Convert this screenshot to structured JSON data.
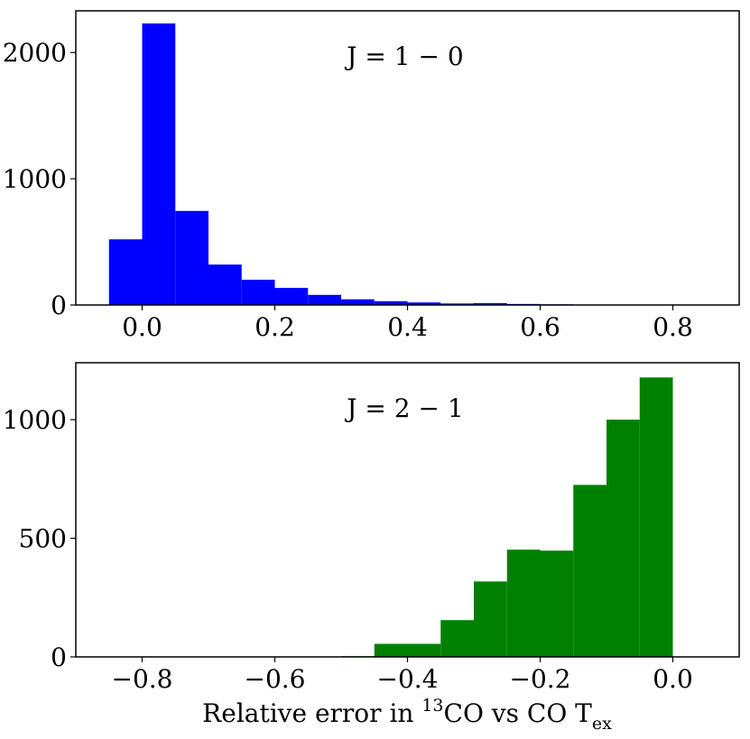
{
  "chart_data": [
    {
      "type": "bar",
      "title": "",
      "annotation": "J = 1 − 0",
      "xlabel": "",
      "ylabel": "",
      "color": "#0000ff",
      "xlim": [
        -0.1,
        0.9
      ],
      "ylim": [
        0,
        2330
      ],
      "xticks": [
        0.0,
        0.2,
        0.4,
        0.6,
        0.8
      ],
      "xtick_labels": [
        "0.0",
        "0.2",
        "0.4",
        "0.6",
        "0.8"
      ],
      "yticks": [
        0,
        1000,
        2000
      ],
      "ytick_labels": [
        "0",
        "1000",
        "2000"
      ],
      "bin_edges": [
        -0.05,
        0.0,
        0.05,
        0.1,
        0.15,
        0.2,
        0.25,
        0.3,
        0.35,
        0.4,
        0.45,
        0.5,
        0.55,
        0.6,
        0.65,
        0.7,
        0.75,
        0.8,
        0.85
      ],
      "values": [
        520,
        2230,
        745,
        320,
        200,
        135,
        80,
        45,
        30,
        20,
        12,
        15,
        8,
        5,
        3,
        2,
        1,
        1
      ]
    },
    {
      "type": "bar",
      "title": "",
      "annotation": "J = 2 − 1",
      "xlabel": "Relative error in ¹³CO vs CO T_ex",
      "ylabel": "",
      "color": "#008000",
      "xlim": [
        -0.9,
        0.1
      ],
      "ylim": [
        0,
        1240
      ],
      "xticks": [
        -0.8,
        -0.6,
        -0.4,
        -0.2,
        0.0
      ],
      "xtick_labels": [
        "−0.8",
        "−0.6",
        "−0.4",
        "−0.2",
        "0.0"
      ],
      "yticks": [
        0,
        500,
        1000
      ],
      "ytick_labels": [
        "0",
        "500",
        "1000"
      ],
      "bin_edges": [
        -0.85,
        -0.8,
        -0.75,
        -0.7,
        -0.65,
        -0.6,
        -0.55,
        -0.5,
        -0.45,
        -0.4,
        -0.35,
        -0.3,
        -0.25,
        -0.2,
        -0.15,
        -0.1,
        -0.05,
        0.0
      ],
      "values": [
        0,
        0,
        0,
        0,
        0,
        0,
        0,
        3,
        55,
        55,
        155,
        318,
        452,
        448,
        725,
        1000,
        1178
      ]
    }
  ],
  "xlabel_parts": {
    "prefix": "Relative error in ",
    "sup": "13",
    "mid": "CO vs CO T",
    "sub": "ex"
  }
}
